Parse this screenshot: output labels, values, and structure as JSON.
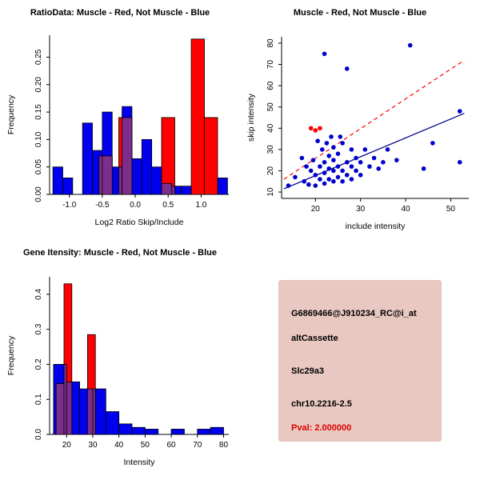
{
  "panels": {
    "info": {
      "bg_color": "#E8C8C0",
      "pval_color": "#DD0000",
      "lines": [
        {
          "text": "G6869466@J910234_RC@i_at"
        },
        {
          "text": "altCassette"
        },
        {
          "text": "Slc29a3"
        },
        {
          "text": "chr10.2216-2.5"
        },
        {
          "text": "Pval: 2.000000"
        }
      ]
    }
  },
  "chart_data": [
    {
      "type": "bar",
      "id": "hist_ratio",
      "title": "RatioData: Muscle - Red, Not Muscle - Blue",
      "xlabel": "Log2 Ratio Skip/Include",
      "ylabel": "Frequency",
      "xlim": [
        -1.3,
        1.42
      ],
      "ylim": [
        0,
        0.29
      ],
      "xticks": [
        -1.0,
        -0.5,
        0.0,
        0.5,
        1.0
      ],
      "xtick_labels": [
        "-1.0",
        "-0.5",
        "0.0",
        "0.5",
        "1.0"
      ],
      "yticks": [
        0.0,
        0.05,
        0.1,
        0.15,
        0.2,
        0.25
      ],
      "ytick_labels": [
        "0.00",
        "0.05",
        "0.10",
        "0.15",
        "0.20",
        "0.25"
      ],
      "grid": false,
      "legend": "none",
      "overlap_color": "#7D2E8D",
      "series": [
        {
          "name": "Not Muscle",
          "color": "#0000EE",
          "bars": [
            [
              -1.25,
              -1.1,
              0.05
            ],
            [
              -1.1,
              -0.95,
              0.03
            ],
            [
              -0.8,
              -0.65,
              0.13
            ],
            [
              -0.65,
              -0.5,
              0.08
            ],
            [
              -0.5,
              -0.35,
              0.15
            ],
            [
              -0.35,
              -0.2,
              0.05
            ],
            [
              -0.2,
              -0.05,
              0.16
            ],
            [
              -0.05,
              0.1,
              0.065
            ],
            [
              0.1,
              0.25,
              0.1
            ],
            [
              0.25,
              0.4,
              0.05
            ],
            [
              0.4,
              0.55,
              0.02
            ],
            [
              0.55,
              0.7,
              0.015
            ],
            [
              0.7,
              0.85,
              0.015
            ],
            [
              1.25,
              1.4,
              0.03
            ]
          ]
        },
        {
          "name": "Muscle",
          "color": "#FF0000",
          "bars": [
            [
              -0.55,
              -0.35,
              0.07
            ],
            [
              -0.25,
              -0.05,
              0.14
            ],
            [
              0.4,
              0.6,
              0.14
            ],
            [
              0.85,
              1.05,
              0.283
            ],
            [
              1.05,
              1.25,
              0.14
            ]
          ]
        }
      ]
    },
    {
      "type": "scatter",
      "id": "scatter",
      "title": "Muscle - Red, Not Muscle - Blue",
      "xlabel": "include intensity",
      "ylabel": "skip intensity",
      "xlim": [
        12.5,
        54
      ],
      "ylim": [
        7,
        83
      ],
      "xticks": [
        20,
        30,
        40,
        50
      ],
      "xtick_labels": [
        "20",
        "30",
        "40",
        "50"
      ],
      "yticks": [
        10,
        20,
        30,
        40,
        50,
        60,
        70,
        80
      ],
      "ytick_labels": [
        "10",
        "20",
        "30",
        "40",
        "50",
        "60",
        "70",
        "80"
      ],
      "grid": false,
      "legend": "none",
      "series": [
        {
          "name": "Not Muscle",
          "color": "#0000CD",
          "points": [
            [
              14,
              13
            ],
            [
              15.5,
              17
            ],
            [
              17,
              26
            ],
            [
              17.5,
              15
            ],
            [
              18,
              22
            ],
            [
              18.5,
              13.5
            ],
            [
              19,
              20
            ],
            [
              19.5,
              25
            ],
            [
              20,
              13
            ],
            [
              20,
              18
            ],
            [
              20.5,
              34
            ],
            [
              21,
              16
            ],
            [
              21,
              22
            ],
            [
              21.5,
              30
            ],
            [
              22,
              14
            ],
            [
              22,
              19
            ],
            [
              22,
              24
            ],
            [
              22,
              75
            ],
            [
              22.5,
              33
            ],
            [
              23,
              16
            ],
            [
              23,
              21
            ],
            [
              23,
              27
            ],
            [
              23.5,
              36
            ],
            [
              24,
              15
            ],
            [
              24,
              20
            ],
            [
              24,
              25
            ],
            [
              24,
              31
            ],
            [
              25,
              17
            ],
            [
              25,
              22
            ],
            [
              25,
              28
            ],
            [
              25.5,
              36
            ],
            [
              26,
              15
            ],
            [
              26,
              20
            ],
            [
              26,
              33
            ],
            [
              27,
              18
            ],
            [
              27,
              24
            ],
            [
              27,
              68
            ],
            [
              28,
              16
            ],
            [
              28,
              22
            ],
            [
              28,
              30
            ],
            [
              29,
              20
            ],
            [
              29,
              26
            ],
            [
              30,
              18
            ],
            [
              30,
              24
            ],
            [
              31,
              30
            ],
            [
              32,
              22
            ],
            [
              33,
              26
            ],
            [
              34,
              21
            ],
            [
              35,
              24
            ],
            [
              36,
              30
            ],
            [
              38,
              25
            ],
            [
              41,
              79
            ],
            [
              44,
              21
            ],
            [
              46,
              33
            ],
            [
              52,
              48
            ],
            [
              52,
              24
            ]
          ]
        },
        {
          "name": "Muscle",
          "color": "#FF0000",
          "points": [
            [
              19,
              40
            ],
            [
              20,
              39
            ],
            [
              21,
              40
            ]
          ]
        }
      ],
      "lines": [
        {
          "name": "muscle-fit",
          "color": "#FF0000",
          "dash": "5,4",
          "x1": 13,
          "y1": 16,
          "x2": 53,
          "y2": 72
        },
        {
          "name": "not-muscle-fit",
          "color": "#00008B",
          "dash": "",
          "x1": 13,
          "y1": 11.5,
          "x2": 53,
          "y2": 47
        }
      ]
    },
    {
      "type": "bar",
      "id": "hist_gene",
      "title": "Gene Itensity: Muscle - Red, Not Muscle - Blue",
      "xlabel": "Intensity",
      "ylabel": "Frequency",
      "xlim": [
        13.5,
        82
      ],
      "ylim": [
        0,
        0.45
      ],
      "xticks": [
        20,
        30,
        40,
        50,
        60,
        70,
        80
      ],
      "xtick_labels": [
        "20",
        "30",
        "40",
        "50",
        "60",
        "70",
        "80"
      ],
      "yticks": [
        0.0,
        0.1,
        0.2,
        0.3,
        0.4
      ],
      "ytick_labels": [
        "0.0",
        "0.1",
        "0.2",
        "0.3",
        "0.4"
      ],
      "grid": false,
      "legend": "none",
      "overlap_color": "#7D2E8D",
      "series": [
        {
          "name": "Not Muscle",
          "color": "#0000EE",
          "bars": [
            [
              15,
              20,
              0.2
            ],
            [
              20,
              25,
              0.15
            ],
            [
              25,
              30,
              0.13
            ],
            [
              30,
              35,
              0.13
            ],
            [
              35,
              40,
              0.065
            ],
            [
              40,
              45,
              0.03
            ],
            [
              45,
              50,
              0.02
            ],
            [
              50,
              55,
              0.015
            ],
            [
              60,
              65,
              0.015
            ],
            [
              70,
              75,
              0.015
            ],
            [
              75,
              80,
              0.02
            ]
          ]
        },
        {
          "name": "Muscle",
          "color": "#FF0000",
          "bars": [
            [
              16,
              19,
              0.145
            ],
            [
              19,
              22,
              0.43
            ],
            [
              28,
              31,
              0.285
            ]
          ]
        }
      ]
    }
  ]
}
